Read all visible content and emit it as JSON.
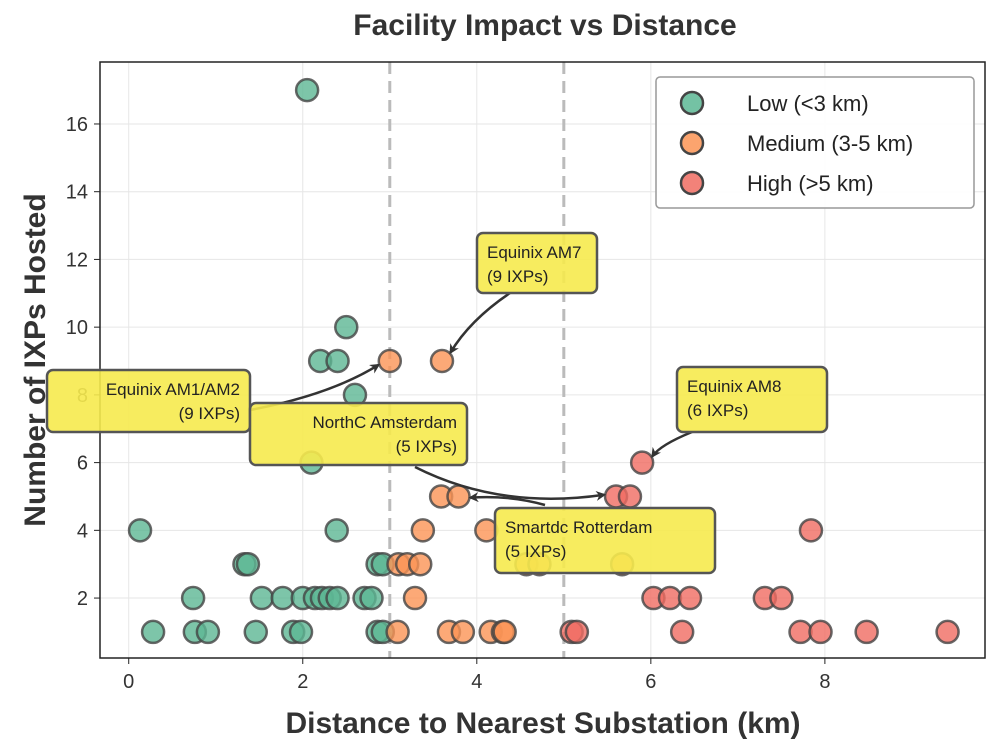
{
  "chart_data": {
    "type": "scatter",
    "title": "Facility Impact vs Distance",
    "xlabel": "Distance to Nearest Substation (km)",
    "ylabel": "Number of IXPs Hosted",
    "xlim": [
      -0.33,
      9.84
    ],
    "ylim": [
      0.23,
      17.83
    ],
    "xticks": [
      0,
      2,
      4,
      6,
      8
    ],
    "yticks": [
      2,
      4,
      6,
      8,
      10,
      12,
      14,
      16
    ],
    "grid": true,
    "threshold_lines": [
      3,
      5
    ],
    "legend_position": "top-right",
    "series": [
      {
        "name": "Low (<3 km)",
        "color": "#5cb794",
        "points": [
          [
            2.05,
            17
          ],
          [
            2.5,
            10
          ],
          [
            2.2,
            9
          ],
          [
            2.4,
            9
          ],
          [
            2.6,
            8
          ],
          [
            2.1,
            6
          ],
          [
            0.13,
            4
          ],
          [
            2.39,
            4
          ],
          [
            1.33,
            3
          ],
          [
            1.37,
            3
          ],
          [
            2.86,
            3
          ],
          [
            2.92,
            3
          ],
          [
            0.74,
            2
          ],
          [
            1.53,
            2
          ],
          [
            1.77,
            2
          ],
          [
            2.0,
            2
          ],
          [
            2.14,
            2
          ],
          [
            2.22,
            2
          ],
          [
            2.31,
            2
          ],
          [
            2.4,
            2
          ],
          [
            2.71,
            2
          ],
          [
            2.79,
            2
          ],
          [
            0.28,
            1
          ],
          [
            0.76,
            1
          ],
          [
            0.91,
            1
          ],
          [
            1.46,
            1
          ],
          [
            1.89,
            1
          ],
          [
            1.98,
            1
          ],
          [
            2.86,
            1
          ],
          [
            2.92,
            1
          ]
        ]
      },
      {
        "name": "Medium (3-5 km)",
        "color": "#fb9455",
        "points": [
          [
            3.0,
            9
          ],
          [
            3.6,
            9
          ],
          [
            3.59,
            5
          ],
          [
            3.79,
            5
          ],
          [
            3.38,
            4
          ],
          [
            4.11,
            4
          ],
          [
            3.1,
            3
          ],
          [
            3.2,
            3
          ],
          [
            3.35,
            3
          ],
          [
            4.57,
            3
          ],
          [
            4.72,
            3
          ],
          [
            5.67,
            3
          ],
          [
            3.29,
            2
          ],
          [
            3.09,
            1
          ],
          [
            3.68,
            1
          ],
          [
            3.84,
            1
          ],
          [
            4.16,
            1
          ],
          [
            4.3,
            1
          ],
          [
            4.32,
            1
          ]
        ]
      },
      {
        "name": "High (>5 km)",
        "color": "#f06c62",
        "points": [
          [
            5.9,
            6
          ],
          [
            5.6,
            5
          ],
          [
            5.76,
            5
          ],
          [
            7.84,
            4
          ],
          [
            6.03,
            2
          ],
          [
            6.22,
            2
          ],
          [
            6.45,
            2
          ],
          [
            7.31,
            2
          ],
          [
            7.5,
            2
          ],
          [
            5.09,
            1
          ],
          [
            5.15,
            1
          ],
          [
            6.36,
            1
          ],
          [
            7.72,
            1
          ],
          [
            7.95,
            1
          ],
          [
            8.48,
            1
          ],
          [
            9.41,
            1
          ]
        ]
      }
    ],
    "annotations": [
      {
        "line1": "Equinix AM7",
        "line2": "(9 IXPs)",
        "target": [
          3.6,
          9
        ]
      },
      {
        "line1": "Equinix AM1/AM2",
        "line2": "(9 IXPs)",
        "target": [
          3.0,
          9
        ]
      },
      {
        "line1": "NorthC Amsterdam",
        "line2": "(5 IXPs)",
        "target": [
          5.6,
          5
        ]
      },
      {
        "line1": "Smartdc Rotterdam",
        "line2": "(5 IXPs)",
        "target": [
          3.79,
          5
        ]
      },
      {
        "line1": "Equinix AM8",
        "line2": "(6 IXPs)",
        "target": [
          5.9,
          6
        ]
      }
    ]
  }
}
